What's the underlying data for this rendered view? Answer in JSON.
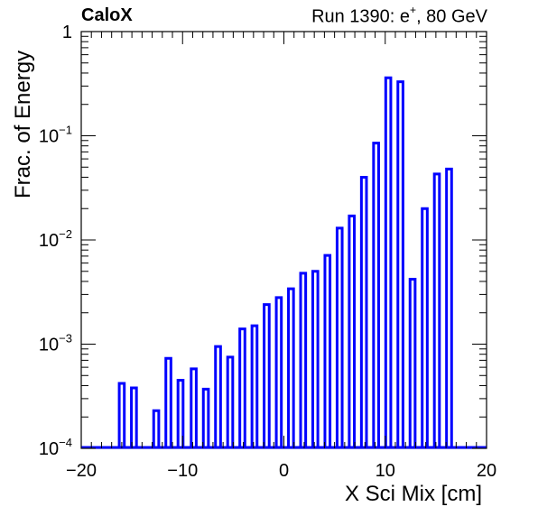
{
  "header": {
    "brand": "CaloX",
    "run_prefix": "Run 1390: e",
    "particle_charge": "+",
    "run_suffix": ", 80 GeV"
  },
  "chart_data": {
    "type": "bar",
    "title": "",
    "xlabel": "X Sci Mix [cm]",
    "ylabel": "Frac. of Energy",
    "xlim": [
      -20,
      20
    ],
    "ylim": [
      0.0001,
      1
    ],
    "yscale": "log",
    "grid": false,
    "legend": "none",
    "bar_color": "#0000ff",
    "xticks": [
      -20,
      -10,
      0,
      10,
      20
    ],
    "xtick_labels": [
      "−20",
      "−10",
      "0",
      "10",
      "20"
    ],
    "yticks": [
      0.0001,
      0.001,
      0.01,
      0.1,
      1
    ],
    "ytick_labels": [
      {
        "base": "10",
        "exp": "−4"
      },
      {
        "base": "10",
        "exp": "−3"
      },
      {
        "base": "10",
        "exp": "−2"
      },
      {
        "base": "10",
        "exp": "−1"
      },
      {
        "base": "1",
        "exp": ""
      }
    ],
    "bins": [
      {
        "x": -16.0,
        "y": 0.00042
      },
      {
        "x": -14.8,
        "y": 0.00038
      },
      {
        "x": -12.6,
        "y": 0.00023
      },
      {
        "x": -11.4,
        "y": 0.00073
      },
      {
        "x": -10.2,
        "y": 0.00045
      },
      {
        "x": -8.9,
        "y": 0.00058
      },
      {
        "x": -7.7,
        "y": 0.00037
      },
      {
        "x": -6.5,
        "y": 0.00095
      },
      {
        "x": -5.3,
        "y": 0.00075
      },
      {
        "x": -4.1,
        "y": 0.0014
      },
      {
        "x": -2.9,
        "y": 0.0015
      },
      {
        "x": -1.7,
        "y": 0.0024
      },
      {
        "x": -0.5,
        "y": 0.0028
      },
      {
        "x": 0.7,
        "y": 0.0034
      },
      {
        "x": 1.9,
        "y": 0.0048
      },
      {
        "x": 3.1,
        "y": 0.005
      },
      {
        "x": 4.3,
        "y": 0.0071
      },
      {
        "x": 5.5,
        "y": 0.013
      },
      {
        "x": 6.7,
        "y": 0.017
      },
      {
        "x": 7.9,
        "y": 0.04
      },
      {
        "x": 9.1,
        "y": 0.085
      },
      {
        "x": 10.3,
        "y": 0.36
      },
      {
        "x": 11.5,
        "y": 0.33
      },
      {
        "x": 12.7,
        "y": 0.0042
      },
      {
        "x": 13.9,
        "y": 0.02
      },
      {
        "x": 15.1,
        "y": 0.043
      },
      {
        "x": 16.3,
        "y": 0.048
      }
    ]
  }
}
